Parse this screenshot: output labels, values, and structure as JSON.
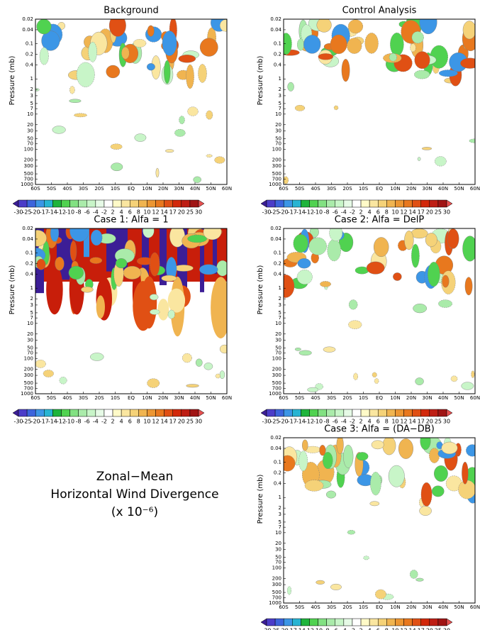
{
  "chart_data": [
    {
      "type": "contour",
      "title": "Background",
      "y_label": "Pressure (mb)",
      "y_log": true,
      "y_reversed": true,
      "ylim": [
        0.02,
        1000
      ],
      "yticks": [
        0.02,
        0.04,
        0.1,
        0.2,
        0.4,
        1,
        2,
        3,
        5,
        7,
        10,
        20,
        30,
        50,
        70,
        100,
        200,
        300,
        500,
        700,
        1000
      ],
      "xlim": [
        -60,
        60
      ],
      "xticks": [
        {
          "value": -60,
          "label": "60S"
        },
        {
          "value": -50,
          "label": "50S"
        },
        {
          "value": -40,
          "label": "40S"
        },
        {
          "value": -30,
          "label": "30S"
        },
        {
          "value": -20,
          "label": "20S"
        },
        {
          "value": -10,
          "label": "10S"
        },
        {
          "value": 0,
          "label": "EQ"
        },
        {
          "value": 10,
          "label": "10N"
        },
        {
          "value": 20,
          "label": "20N"
        },
        {
          "value": 30,
          "label": "30N"
        },
        {
          "value": 40,
          "label": "40N"
        },
        {
          "value": 50,
          "label": "50N"
        },
        {
          "value": 60,
          "label": "60N"
        }
      ]
    },
    {
      "type": "contour",
      "title": "Control Analysis",
      "y_label": "Pressure (mb)",
      "y_log": true,
      "y_reversed": true,
      "ylim": [
        0.02,
        1000
      ],
      "yticks": [
        0.02,
        0.04,
        0.1,
        0.2,
        0.4,
        1,
        2,
        3,
        5,
        7,
        10,
        20,
        30,
        50,
        70,
        100,
        200,
        300,
        500,
        700,
        1000
      ],
      "xlim": [
        -60,
        60
      ],
      "xticks": [
        {
          "value": -60,
          "label": "60S"
        },
        {
          "value": -50,
          "label": "50S"
        },
        {
          "value": -40,
          "label": "40S"
        },
        {
          "value": -30,
          "label": "30S"
        },
        {
          "value": -20,
          "label": "20S"
        },
        {
          "value": -10,
          "label": "10S"
        },
        {
          "value": 0,
          "label": "EQ"
        },
        {
          "value": 10,
          "label": "10N"
        },
        {
          "value": 20,
          "label": "20N"
        },
        {
          "value": 30,
          "label": "30N"
        },
        {
          "value": 40,
          "label": "40N"
        },
        {
          "value": 50,
          "label": "50N"
        },
        {
          "value": 60,
          "label": "60N"
        }
      ]
    },
    {
      "type": "contour-strong",
      "title": "Case 1:  Alfa = 1",
      "y_label": "Pressure (mb)",
      "y_log": true,
      "y_reversed": true,
      "ylim": [
        0.02,
        1000
      ],
      "yticks": [
        0.02,
        0.04,
        0.1,
        0.2,
        0.4,
        1,
        2,
        3,
        5,
        7,
        10,
        20,
        30,
        50,
        70,
        100,
        200,
        300,
        500,
        700,
        1000
      ],
      "xlim": [
        -60,
        60
      ],
      "xticks": [
        {
          "value": -60,
          "label": "60S"
        },
        {
          "value": -50,
          "label": "50S"
        },
        {
          "value": -40,
          "label": "40S"
        },
        {
          "value": -30,
          "label": "30S"
        },
        {
          "value": -20,
          "label": "20S"
        },
        {
          "value": -10,
          "label": "10S"
        },
        {
          "value": 0,
          "label": "EQ"
        },
        {
          "value": 10,
          "label": "10N"
        },
        {
          "value": 20,
          "label": "20N"
        },
        {
          "value": 30,
          "label": "30N"
        },
        {
          "value": 40,
          "label": "40N"
        },
        {
          "value": 50,
          "label": "50N"
        },
        {
          "value": 60,
          "label": "60N"
        }
      ]
    },
    {
      "type": "contour",
      "title": "Case 2:  Alfa = DelP",
      "y_label": "Pressure (mb)",
      "y_log": true,
      "y_reversed": true,
      "ylim": [
        0.02,
        1000
      ],
      "yticks": [
        0.02,
        0.04,
        0.1,
        0.2,
        0.4,
        1,
        2,
        3,
        5,
        7,
        10,
        20,
        30,
        50,
        70,
        100,
        200,
        300,
        500,
        700,
        1000
      ],
      "xlim": [
        -60,
        60
      ],
      "xticks": [
        {
          "value": -60,
          "label": "60S"
        },
        {
          "value": -50,
          "label": "50S"
        },
        {
          "value": -40,
          "label": "40S"
        },
        {
          "value": -30,
          "label": "30S"
        },
        {
          "value": -20,
          "label": "20S"
        },
        {
          "value": -10,
          "label": "10S"
        },
        {
          "value": 0,
          "label": "EQ"
        },
        {
          "value": 10,
          "label": "10N"
        },
        {
          "value": 20,
          "label": "20N"
        },
        {
          "value": 30,
          "label": "30N"
        },
        {
          "value": 40,
          "label": "40N"
        },
        {
          "value": 50,
          "label": "50N"
        },
        {
          "value": 60,
          "label": "60N"
        }
      ]
    },
    {
      "type": "contour",
      "title": "Case 3:  Alfa = (DA−DB)",
      "y_label": "Pressure (mb)",
      "y_log": true,
      "y_reversed": true,
      "ylim": [
        0.02,
        1000
      ],
      "yticks": [
        0.02,
        0.04,
        0.1,
        0.2,
        0.4,
        1,
        2,
        3,
        5,
        7,
        10,
        20,
        30,
        50,
        70,
        100,
        200,
        300,
        500,
        700,
        1000
      ],
      "xlim": [
        -60,
        60
      ],
      "xticks": [
        {
          "value": -60,
          "label": "60S"
        },
        {
          "value": -50,
          "label": "50S"
        },
        {
          "value": -40,
          "label": "40S"
        },
        {
          "value": -30,
          "label": "30S"
        },
        {
          "value": -20,
          "label": "20S"
        },
        {
          "value": -10,
          "label": "10S"
        },
        {
          "value": 0,
          "label": "EQ"
        },
        {
          "value": 10,
          "label": "10N"
        },
        {
          "value": 20,
          "label": "20N"
        },
        {
          "value": 30,
          "label": "30N"
        },
        {
          "value": 40,
          "label": "40N"
        },
        {
          "value": 50,
          "label": "50N"
        },
        {
          "value": 60,
          "label": "60N"
        }
      ]
    }
  ],
  "colorbar": {
    "levels": [
      -30,
      -25,
      -20,
      -17,
      -14,
      -12,
      -10,
      -8,
      -6,
      -4,
      -2,
      2,
      4,
      6,
      8,
      10,
      12,
      14,
      17,
      20,
      25,
      30
    ],
    "colors": [
      "#3c1e96",
      "#4b3cc8",
      "#3c64dc",
      "#3c96e6",
      "#28b4d2",
      "#1eb43c",
      "#50d250",
      "#82e182",
      "#aaebaa",
      "#c8f5c8",
      "#e6fae6",
      "#ffffff",
      "#fffac8",
      "#fae6a0",
      "#f5d278",
      "#f0b450",
      "#ec9632",
      "#e8781e",
      "#e05014",
      "#d2280a",
      "#be1e14",
      "#a01414",
      "#e65050"
    ]
  },
  "annotation": [
    "Zonal−Mean",
    "Horizontal Wind Divergence",
    "(x 10⁻⁶)"
  ]
}
